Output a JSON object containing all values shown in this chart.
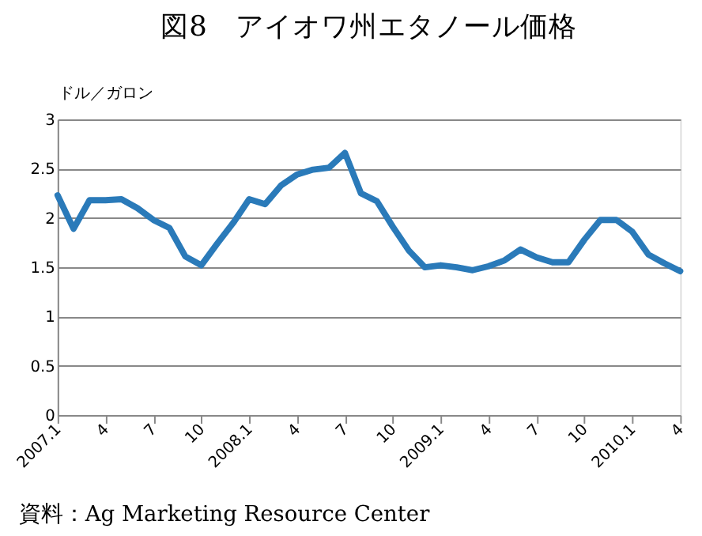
{
  "chart_data": {
    "type": "line",
    "title": "図8　アイオワ州エタノール価格",
    "ylabel": "ドル／ガロン",
    "categories": [
      "2007.1",
      null,
      null,
      "4",
      null,
      null,
      "7",
      null,
      null,
      "10",
      null,
      null,
      "2008.1",
      null,
      null,
      "4",
      null,
      null,
      "7",
      null,
      null,
      "10",
      null,
      null,
      "2009.1",
      null,
      null,
      "4",
      null,
      null,
      "7",
      null,
      null,
      "10",
      null,
      null,
      "2010.1",
      null,
      null,
      "4"
    ],
    "series": [
      {
        "color": "#2a7ab9",
        "values": [
          2.23,
          1.89,
          2.18,
          2.18,
          2.19,
          2.1,
          1.98,
          1.9,
          1.61,
          1.52,
          1.74,
          1.95,
          2.19,
          2.14,
          2.33,
          2.44,
          2.49,
          2.51,
          2.66,
          2.25,
          2.17,
          1.91,
          1.67,
          1.5,
          1.52,
          1.5,
          1.47,
          1.51,
          1.57,
          1.68,
          1.6,
          1.55,
          1.55,
          1.78,
          1.98,
          1.98,
          1.86,
          1.63,
          1.54,
          1.46
        ]
      }
    ],
    "ylim": [
      0,
      3
    ],
    "yticks": [
      0,
      0.5,
      1,
      1.5,
      2,
      2.5,
      3
    ],
    "grid": "y",
    "legend": false,
    "marker": "none",
    "line_style": "solid",
    "annotations": [
      "資料：Ag Marketing Resource Center"
    ]
  }
}
